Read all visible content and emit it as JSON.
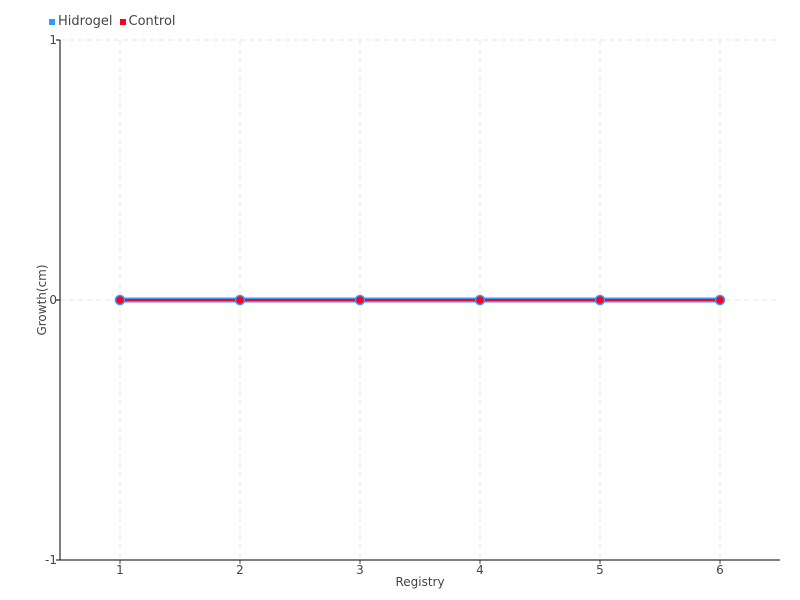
{
  "chart_data": {
    "type": "line",
    "xlabel": "Registry",
    "ylabel": "Growth(cm)",
    "x": [
      1,
      2,
      3,
      4,
      5,
      6
    ],
    "xlim": [
      0.5,
      6.5
    ],
    "ylim": [
      -1,
      1
    ],
    "yticks": [
      -1,
      0,
      1
    ],
    "grid": true,
    "legend_position": "top-left",
    "series": [
      {
        "name": "Hidrogel",
        "color": "#3399ff",
        "values": [
          0,
          0,
          0,
          0,
          0,
          0
        ]
      },
      {
        "name": "Control",
        "color": "#ff0022",
        "values": [
          0,
          0,
          0,
          0,
          0,
          0
        ]
      }
    ]
  }
}
